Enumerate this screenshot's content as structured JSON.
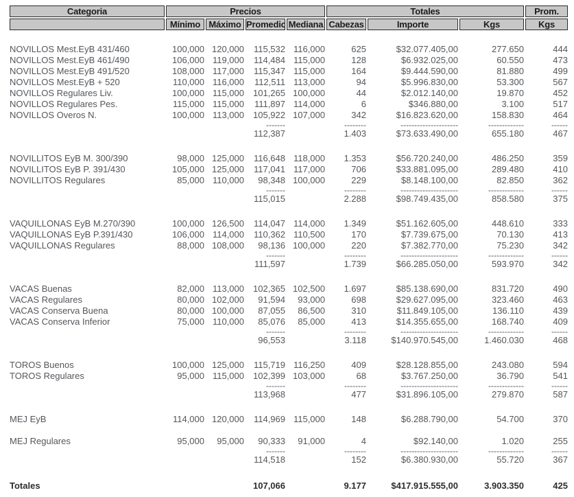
{
  "colors": {
    "header_bg": "#c7c7c7",
    "header_border": "#2b2b2b",
    "header_text": "#1c1c1c",
    "body_text": "#54565a",
    "totals_text": "#2d2d2d",
    "background": "#ffffff"
  },
  "header": {
    "row1": {
      "categoria": "Categoria",
      "precios": "Precios",
      "totales": "Totales",
      "prom": "Prom."
    },
    "row2": {
      "minimo": "Mínimo",
      "maximo": "Máximo",
      "promedio": "Promedio",
      "mediana": "Mediana",
      "cabezas": "Cabezas",
      "importe": "Importe",
      "kgs": "Kgs",
      "prom_kgs": "Kgs"
    }
  },
  "dashes": {
    "promedio": "-------",
    "cabezas": "--------",
    "importe": "---------------------",
    "kgs": "-------------",
    "prom_kgs": "------"
  },
  "groups": [
    {
      "name": "NOVILLOS",
      "rows": [
        [
          "NOVILLOS Mest.EyB 431/460",
          "100,000",
          "120,000",
          "115,532",
          "116,000",
          "625",
          "$32.077.405,00",
          "277.650",
          "444"
        ],
        [
          "NOVILLOS Mest.EyB 461/490",
          "106,000",
          "119,000",
          "114,484",
          "115,000",
          "128",
          "$6.932.025,00",
          "60.550",
          "473"
        ],
        [
          "NOVILLOS Mest.EyB 491/520",
          "108,000",
          "117,000",
          "115,347",
          "115,000",
          "164",
          "$9.444.590,00",
          "81.880",
          "499"
        ],
        [
          "NOVILLOS Mest.EyB + 520",
          "110,000",
          "116,000",
          "112,511",
          "113,000",
          "94",
          "$5.996.830,00",
          "53.300",
          "567"
        ],
        [
          "NOVILLOS Regulares Liv.",
          "100,000",
          "115,000",
          "101,265",
          "100,000",
          "44",
          "$2.012.140,00",
          "19.870",
          "452"
        ],
        [
          "NOVILLOS Regulares Pes.",
          "115,000",
          "115,000",
          "111,897",
          "114,000",
          "6",
          "$346.880,00",
          "3.100",
          "517"
        ],
        [
          "NOVILLOS Overos N.",
          "100,000",
          "113,000",
          "105,922",
          "107,000",
          "342",
          "$16.823.620,00",
          "158.830",
          "464"
        ]
      ],
      "subtotal": {
        "promedio": "112,387",
        "cabezas": "1.403",
        "importe": "$73.633.490,00",
        "kgs": "655.180",
        "prom_kgs": "467"
      }
    },
    {
      "name": "NOVILLITOS",
      "rows": [
        [
          "NOVILLITOS EyB M. 300/390",
          "98,000",
          "125,000",
          "116,648",
          "118,000",
          "1.353",
          "$56.720.240,00",
          "486.250",
          "359"
        ],
        [
          "NOVILLITOS EyB P. 391/430",
          "105,000",
          "125,000",
          "117,041",
          "117,000",
          "706",
          "$33.881.095,00",
          "289.480",
          "410"
        ],
        [
          "NOVILLITOS Regulares",
          "85,000",
          "110,000",
          "98,348",
          "100,000",
          "229",
          "$8.148.100,00",
          "82.850",
          "362"
        ]
      ],
      "subtotal": {
        "promedio": "115,015",
        "cabezas": "2.288",
        "importe": "$98.749.435,00",
        "kgs": "858.580",
        "prom_kgs": "375"
      }
    },
    {
      "name": "VAQUILLONAS",
      "rows": [
        [
          "VAQUILLONAS EyB M.270/390",
          "100,000",
          "126,500",
          "114,047",
          "114,000",
          "1.349",
          "$51.162.605,00",
          "448.610",
          "333"
        ],
        [
          "VAQUILLONAS EyB P.391/430",
          "106,000",
          "114,000",
          "110,362",
          "110,500",
          "170",
          "$7.739.675,00",
          "70.130",
          "413"
        ],
        [
          "VAQUILLONAS Regulares",
          "88,000",
          "108,000",
          "98,136",
          "100,000",
          "220",
          "$7.382.770,00",
          "75.230",
          "342"
        ]
      ],
      "subtotal": {
        "promedio": "111,597",
        "cabezas": "1.739",
        "importe": "$66.285.050,00",
        "kgs": "593.970",
        "prom_kgs": "342"
      }
    },
    {
      "name": "VACAS",
      "rows": [
        [
          "VACAS Buenas",
          "82,000",
          "113,000",
          "102,365",
          "102,500",
          "1.697",
          "$85.138.690,00",
          "831.720",
          "490"
        ],
        [
          "VACAS Regulares",
          "80,000",
          "102,000",
          "91,594",
          "93,000",
          "698",
          "$29.627.095,00",
          "323.460",
          "463"
        ],
        [
          "VACAS Conserva Buena",
          "80,000",
          "100,000",
          "87,055",
          "86,500",
          "310",
          "$11.849.105,00",
          "136.110",
          "439"
        ],
        [
          "VACAS Conserva Inferior",
          "75,000",
          "110,000",
          "85,076",
          "85,000",
          "413",
          "$14.355.655,00",
          "168.740",
          "409"
        ]
      ],
      "subtotal": {
        "promedio": "96,553",
        "cabezas": "3.118",
        "importe": "$140.970.545,00",
        "kgs": "1.460.030",
        "prom_kgs": "468"
      }
    },
    {
      "name": "TOROS",
      "rows": [
        [
          "TOROS Buenos",
          "100,000",
          "125,000",
          "115,719",
          "116,250",
          "409",
          "$28.128.855,00",
          "243.080",
          "594"
        ],
        [
          "TOROS Regulares",
          "95,000",
          "115,000",
          "102,399",
          "103,000",
          "68",
          "$3.767.250,00",
          "36.790",
          "541"
        ]
      ],
      "subtotal": {
        "promedio": "113,968",
        "cabezas": "477",
        "importe": "$31.896.105,00",
        "kgs": "279.870",
        "prom_kgs": "587"
      }
    },
    {
      "name": "MEJ EyB",
      "rows": [
        [
          "MEJ EyB",
          "114,000",
          "120,000",
          "114,969",
          "115,000",
          "148",
          "$6.288.790,00",
          "54.700",
          "370"
        ]
      ],
      "subtotal": null
    },
    {
      "name": "MEJ Regulares",
      "rows": [
        [
          "MEJ Regulares",
          "95,000",
          "95,000",
          "90,333",
          "91,000",
          "4",
          "$92.140,00",
          "1.020",
          "255"
        ]
      ],
      "subtotal": {
        "promedio": "114,518",
        "cabezas": "152",
        "importe": "$6.380.930,00",
        "kgs": "55.720",
        "prom_kgs": "367"
      }
    }
  ],
  "totals": {
    "label": "Totales",
    "promedio": "107,066",
    "cabezas": "9.177",
    "importe": "$417.915.555,00",
    "kgs": "3.903.350",
    "prom_kgs": "425"
  }
}
